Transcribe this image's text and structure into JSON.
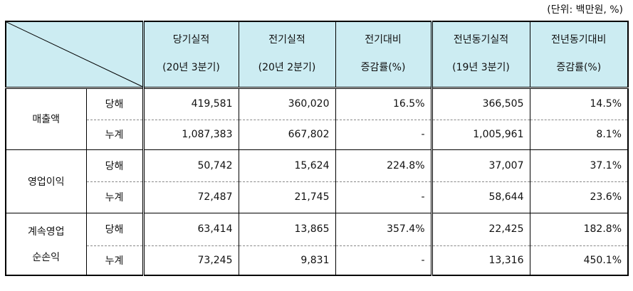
{
  "unit_note": "(단위: 백만원, %)",
  "headers": [
    {
      "l1": "당기실적",
      "l2": "(20년 3분기)"
    },
    {
      "l1": "전기실적",
      "l2": "(20년 2분기)"
    },
    {
      "l1": "전기대비",
      "l2": "증감률(%)"
    },
    {
      "l1": "전년동기실적",
      "l2": "(19년 3분기)"
    },
    {
      "l1": "전년동기대비",
      "l2": "증감률(%)"
    }
  ],
  "groups": [
    {
      "name": "매출액",
      "rows": [
        {
          "sub": "당해",
          "values": [
            "419,581",
            "360,020",
            "16.5%",
            "366,505",
            "14.5%"
          ]
        },
        {
          "sub": "누계",
          "values": [
            "1,087,383",
            "667,802",
            "-",
            "1,005,961",
            "8.1%"
          ]
        }
      ]
    },
    {
      "name": "영업이익",
      "rows": [
        {
          "sub": "당해",
          "values": [
            "50,742",
            "15,624",
            "224.8%",
            "37,007",
            "37.1%"
          ]
        },
        {
          "sub": "누계",
          "values": [
            "72,487",
            "21,745",
            "-",
            "58,644",
            "23.6%"
          ]
        }
      ]
    },
    {
      "name": "계속영업\n순손익",
      "rows": [
        {
          "sub": "당해",
          "values": [
            "63,414",
            "13,865",
            "357.4%",
            "22,425",
            "182.8%"
          ]
        },
        {
          "sub": "누계",
          "values": [
            "73,245",
            "9,831",
            "-",
            "13,316",
            "450.1%"
          ]
        }
      ]
    }
  ]
}
